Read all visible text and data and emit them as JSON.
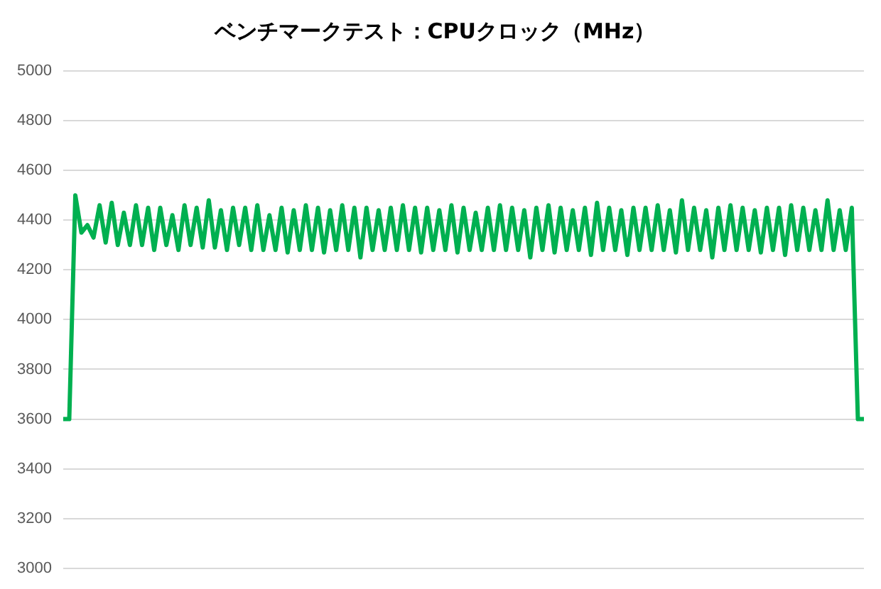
{
  "chart_data": {
    "type": "line",
    "title": "ベンチマークテスト：CPUクロック（MHz）",
    "categories": [
      null,
      null,
      null,
      null,
      null,
      null,
      null,
      null,
      null,
      null,
      null,
      null,
      null,
      null,
      null,
      null,
      null,
      null,
      null,
      null,
      null,
      null,
      null,
      null,
      null,
      null,
      null,
      null,
      null,
      null,
      null,
      null,
      null,
      null,
      null,
      null,
      null,
      null,
      null,
      null,
      null,
      null,
      null,
      null,
      null,
      null,
      null,
      null,
      null,
      null,
      null,
      null,
      null,
      null,
      null,
      null,
      null,
      null,
      null,
      null,
      null,
      null,
      null,
      null,
      null,
      null,
      null,
      null,
      null,
      null,
      null,
      null,
      null,
      null,
      null,
      null,
      null,
      null,
      null,
      null,
      null,
      null,
      null,
      null,
      null,
      null,
      null,
      null,
      null,
      null,
      null,
      null,
      null,
      null,
      null,
      null,
      null,
      null,
      null,
      null,
      null,
      null,
      null,
      null,
      null,
      null,
      null,
      null,
      null,
      null,
      null,
      null,
      null,
      null,
      null,
      null,
      null,
      null,
      null,
      null,
      null,
      null,
      null,
      null,
      null,
      null,
      null,
      null,
      null,
      null,
      null,
      null,
      null
    ],
    "series": [
      {
        "color": "#00b050",
        "values": [
          3600,
          3600,
          4500,
          4350,
          4380,
          4330,
          4460,
          4310,
          4470,
          4300,
          4430,
          4300,
          4460,
          4300,
          4450,
          4280,
          4450,
          4300,
          4420,
          4280,
          4460,
          4300,
          4450,
          4290,
          4480,
          4290,
          4440,
          4280,
          4450,
          4300,
          4450,
          4280,
          4460,
          4280,
          4420,
          4280,
          4450,
          4270,
          4440,
          4280,
          4460,
          4280,
          4450,
          4270,
          4440,
          4280,
          4460,
          4280,
          4450,
          4250,
          4450,
          4280,
          4440,
          4280,
          4450,
          4280,
          4460,
          4280,
          4450,
          4270,
          4450,
          4280,
          4440,
          4280,
          4460,
          4270,
          4450,
          4280,
          4430,
          4280,
          4450,
          4280,
          4460,
          4280,
          4450,
          4280,
          4440,
          4250,
          4450,
          4280,
          4460,
          4270,
          4450,
          4280,
          4440,
          4280,
          4450,
          4260,
          4470,
          4280,
          4450,
          4280,
          4440,
          4260,
          4450,
          4280,
          4450,
          4280,
          4460,
          4280,
          4440,
          4270,
          4480,
          4280,
          4450,
          4280,
          4440,
          4250,
          4450,
          4280,
          4460,
          4280,
          4450,
          4280,
          4440,
          4270,
          4450,
          4280,
          4450,
          4260,
          4460,
          4280,
          4450,
          4280,
          4440,
          4280,
          4480,
          4280,
          4440,
          4280,
          4450,
          3600,
          3600
        ]
      }
    ],
    "ylim": [
      3000,
      5000
    ],
    "yticks": [
      3000,
      3200,
      3400,
      3600,
      3800,
      4000,
      4200,
      4400,
      4600,
      4800,
      5000
    ],
    "grid": "y",
    "legend": false,
    "tick_labels": "y",
    "marker": "none",
    "line_style": "solid"
  }
}
